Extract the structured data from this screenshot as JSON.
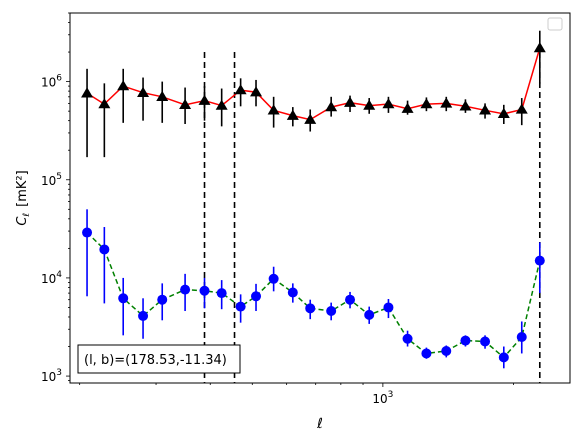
{
  "chart_data": {
    "type": "scatter",
    "xscale": "log",
    "yscale": "log",
    "xlim": [
      190,
      2700
    ],
    "ylim": [
      850,
      5000000
    ],
    "xlabel": "ℓ",
    "ylabel_main": "C",
    "ylabel_sub": "ℓ",
    "ylabel_unit": "[mK²]",
    "annotation": "(l, b)=(178.53,-11.34)",
    "legend_placement": "top-right",
    "grid": false,
    "x_tick_labels": [
      {
        "value": 1000,
        "base": "10",
        "exp": "3"
      }
    ],
    "y_tick_labels": [
      {
        "value": 1000,
        "base": "10",
        "exp": "3"
      },
      {
        "value": 10000,
        "base": "10",
        "exp": "4"
      },
      {
        "value": 100000,
        "base": "10",
        "exp": "5"
      },
      {
        "value": 1000000,
        "base": "10",
        "exp": "6"
      }
    ],
    "vlines": [
      388,
      455,
      2300
    ],
    "series": [
      {
        "marker": "triangle",
        "line_color": "#ff0000",
        "line_style": "solid",
        "marker_color": "#000000",
        "errorbar_color": "#000000",
        "points": [
          {
            "x": 208,
            "y": 760000,
            "lo": 170000,
            "hi": 1350000
          },
          {
            "x": 228,
            "y": 590000,
            "lo": 170000,
            "hi": 960000
          },
          {
            "x": 252,
            "y": 900000,
            "lo": 380000,
            "hi": 1350000
          },
          {
            "x": 280,
            "y": 770000,
            "lo": 400000,
            "hi": 1100000
          },
          {
            "x": 310,
            "y": 700000,
            "lo": 380000,
            "hi": 1000000
          },
          {
            "x": 350,
            "y": 580000,
            "lo": 370000,
            "hi": 870000
          },
          {
            "x": 388,
            "y": 640000,
            "lo": 400000,
            "hi": 900000
          },
          {
            "x": 425,
            "y": 570000,
            "lo": 350000,
            "hi": 850000
          },
          {
            "x": 470,
            "y": 820000,
            "lo": 560000,
            "hi": 1080000
          },
          {
            "x": 510,
            "y": 780000,
            "lo": 560000,
            "hi": 1040000
          },
          {
            "x": 560,
            "y": 510000,
            "lo": 340000,
            "hi": 700000
          },
          {
            "x": 620,
            "y": 450000,
            "lo": 350000,
            "hi": 550000
          },
          {
            "x": 680,
            "y": 410000,
            "lo": 310000,
            "hi": 520000
          },
          {
            "x": 760,
            "y": 550000,
            "lo": 440000,
            "hi": 700000
          },
          {
            "x": 840,
            "y": 610000,
            "lo": 490000,
            "hi": 720000
          },
          {
            "x": 930,
            "y": 570000,
            "lo": 470000,
            "hi": 680000
          },
          {
            "x": 1030,
            "y": 590000,
            "lo": 480000,
            "hi": 700000
          },
          {
            "x": 1140,
            "y": 530000,
            "lo": 460000,
            "hi": 640000
          },
          {
            "x": 1260,
            "y": 590000,
            "lo": 500000,
            "hi": 690000
          },
          {
            "x": 1400,
            "y": 600000,
            "lo": 500000,
            "hi": 700000
          },
          {
            "x": 1550,
            "y": 560000,
            "lo": 480000,
            "hi": 660000
          },
          {
            "x": 1720,
            "y": 510000,
            "lo": 420000,
            "hi": 600000
          },
          {
            "x": 1900,
            "y": 470000,
            "lo": 370000,
            "hi": 580000
          },
          {
            "x": 2090,
            "y": 520000,
            "lo": 360000,
            "hi": 680000
          },
          {
            "x": 2300,
            "y": 2200000,
            "lo": 950000,
            "hi": 3300000
          }
        ]
      },
      {
        "marker": "circle",
        "line_color": "#008000",
        "line_style": "dashed",
        "marker_color": "#0000ff",
        "errorbar_color": "#0000ff",
        "points": [
          {
            "x": 208,
            "y": 29000,
            "lo": 6500,
            "hi": 50000
          },
          {
            "x": 228,
            "y": 19500,
            "lo": 5500,
            "hi": 33000
          },
          {
            "x": 252,
            "y": 6200,
            "lo": 2600,
            "hi": 10000
          },
          {
            "x": 280,
            "y": 4100,
            "lo": 2400,
            "hi": 6200
          },
          {
            "x": 310,
            "y": 6000,
            "lo": 3700,
            "hi": 8800
          },
          {
            "x": 350,
            "y": 7600,
            "lo": 4600,
            "hi": 11000
          },
          {
            "x": 388,
            "y": 7400,
            "lo": 4900,
            "hi": 10000
          },
          {
            "x": 425,
            "y": 7000,
            "lo": 4800,
            "hi": 9500
          },
          {
            "x": 470,
            "y": 5100,
            "lo": 3500,
            "hi": 6800
          },
          {
            "x": 510,
            "y": 6500,
            "lo": 4600,
            "hi": 8700
          },
          {
            "x": 560,
            "y": 9800,
            "lo": 7300,
            "hi": 13000
          },
          {
            "x": 620,
            "y": 7100,
            "lo": 5600,
            "hi": 8800
          },
          {
            "x": 680,
            "y": 4900,
            "lo": 3800,
            "hi": 6000
          },
          {
            "x": 760,
            "y": 4600,
            "lo": 3700,
            "hi": 5600
          },
          {
            "x": 840,
            "y": 6000,
            "lo": 4900,
            "hi": 7200
          },
          {
            "x": 930,
            "y": 4200,
            "lo": 3400,
            "hi": 5100
          },
          {
            "x": 1030,
            "y": 5000,
            "lo": 3900,
            "hi": 6100
          },
          {
            "x": 1140,
            "y": 2400,
            "lo": 2000,
            "hi": 2900
          },
          {
            "x": 1260,
            "y": 1700,
            "lo": 1500,
            "hi": 1950
          },
          {
            "x": 1400,
            "y": 1800,
            "lo": 1550,
            "hi": 2050
          },
          {
            "x": 1550,
            "y": 2300,
            "lo": 2000,
            "hi": 2600
          },
          {
            "x": 1720,
            "y": 2250,
            "lo": 1900,
            "hi": 2600
          },
          {
            "x": 1900,
            "y": 1550,
            "lo": 1200,
            "hi": 2000
          },
          {
            "x": 2090,
            "y": 2500,
            "lo": 1700,
            "hi": 3600
          },
          {
            "x": 2300,
            "y": 15000,
            "lo": 7000,
            "hi": 23000
          }
        ]
      }
    ]
  }
}
